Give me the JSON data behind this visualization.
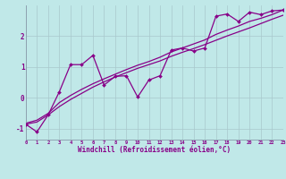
{
  "background_color": "#c0e8e8",
  "line_color": "#880088",
  "x_data": [
    0,
    1,
    2,
    3,
    4,
    5,
    6,
    7,
    8,
    9,
    10,
    11,
    12,
    13,
    14,
    15,
    16,
    17,
    18,
    19,
    20,
    21,
    22,
    23
  ],
  "y_main": [
    -0.85,
    -1.1,
    -0.55,
    0.2,
    1.08,
    1.08,
    1.38,
    0.42,
    0.7,
    0.72,
    0.03,
    0.58,
    0.72,
    1.55,
    1.62,
    1.52,
    1.62,
    2.65,
    2.72,
    2.48,
    2.78,
    2.7,
    2.82,
    2.85
  ],
  "y_line1": [
    -0.85,
    -0.78,
    -0.55,
    -0.28,
    -0.05,
    0.15,
    0.35,
    0.52,
    0.68,
    0.82,
    0.96,
    1.08,
    1.2,
    1.35,
    1.48,
    1.6,
    1.73,
    1.87,
    2.01,
    2.14,
    2.27,
    2.41,
    2.55,
    2.68
  ],
  "y_line2": [
    -0.82,
    -0.72,
    -0.5,
    -0.15,
    0.08,
    0.28,
    0.46,
    0.62,
    0.77,
    0.92,
    1.06,
    1.18,
    1.32,
    1.49,
    1.62,
    1.75,
    1.88,
    2.06,
    2.2,
    2.33,
    2.48,
    2.58,
    2.7,
    2.85
  ],
  "xlabel": "Windchill (Refroidissement éolien,°C)",
  "ytick_labels": [
    "-1",
    "0",
    "1",
    "2"
  ],
  "ytick_vals": [
    -1,
    0,
    1,
    2
  ],
  "xtick_labels": [
    "0",
    "1",
    "2",
    "3",
    "4",
    "5",
    "6",
    "7",
    "8",
    "9",
    "10",
    "11",
    "12",
    "13",
    "14",
    "15",
    "16",
    "17",
    "18",
    "19",
    "20",
    "21",
    "22",
    "23"
  ],
  "xlim": [
    0,
    23
  ],
  "ylim": [
    -1.35,
    3.0
  ],
  "grid_color": "#a8c8cc",
  "spine_color": "#8899aa"
}
